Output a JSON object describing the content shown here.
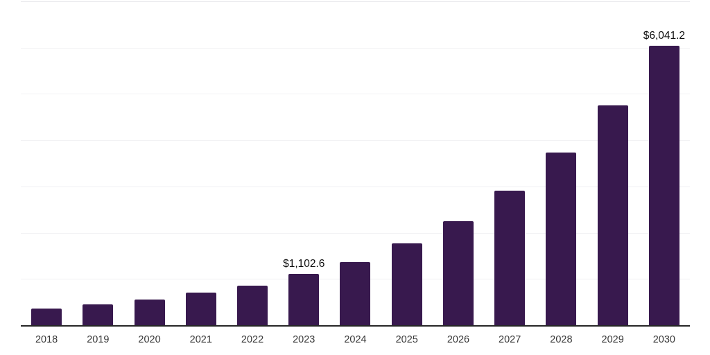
{
  "chart": {
    "background_color": "#ffffff",
    "bar_color": "#38194E",
    "axis_line_color": "#262626",
    "gridline_color": "#f1f1f3",
    "top_gridline_color": "#e7e7ea",
    "tick_label_color": "#383838",
    "data_label_color": "#0d0d0d"
  },
  "chart_data": {
    "type": "bar",
    "title": "",
    "xlabel": "",
    "ylabel": "",
    "categories": [
      "2018",
      "2019",
      "2020",
      "2021",
      "2022",
      "2023",
      "2024",
      "2025",
      "2026",
      "2027",
      "2028",
      "2029",
      "2030"
    ],
    "values": [
      355,
      450,
      555,
      705,
      855,
      1102.6,
      1365,
      1770,
      2250,
      2905,
      3730,
      4755,
      6041.2
    ],
    "point_labels": [
      "",
      "",
      "",
      "",
      "",
      "$1,102.6",
      "",
      "",
      "",
      "",
      "",
      "",
      "$6,041.2"
    ],
    "ylim": [
      0,
      7000
    ],
    "gridline_step": 1000,
    "grid": "horizontal",
    "legend": "none",
    "y_axis_labels_visible": false,
    "x_axis_line_visible": true
  }
}
